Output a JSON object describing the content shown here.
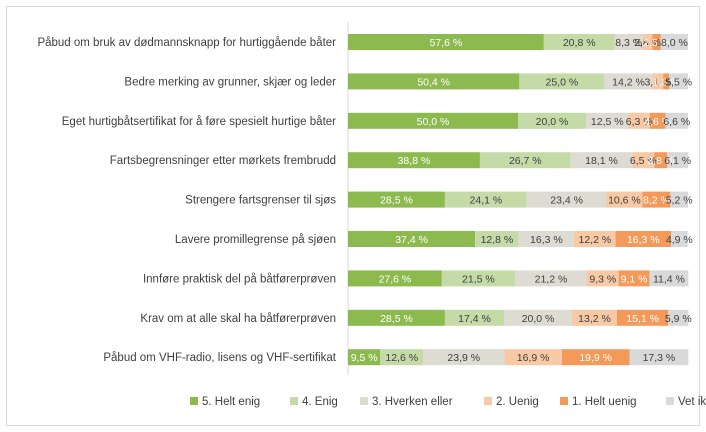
{
  "chart_data": {
    "type": "bar",
    "orientation": "horizontal-stacked-100",
    "categories": [
      "Påbud om bruk av dødmannsknapp for hurtiggående båter",
      "Bedre merking av grunner, skjær og leder",
      "Eget hurtigbåtsertifikat for å føre spesielt hurtige båter",
      "Fartsbegrensninger etter mørkets frembrudd",
      "Strengere fartsgrenser til sjøs",
      "Lavere promillegrense på sjøen",
      "Innføre praktisk del på båtførerprøven",
      "Krav om at alle skal ha båtførerprøven",
      "Påbud om VHF-radio, lisens og VHF-sertifikat"
    ],
    "series": [
      {
        "name": "5. Helt enig",
        "color": "#8dba4f",
        "text_color": "#ffffff",
        "values": [
          57.6,
          50.4,
          50.0,
          38.8,
          28.5,
          37.4,
          27.6,
          28.5,
          9.5
        ],
        "labels": [
          "57,6 %",
          "50,4 %",
          "50,0 %",
          "38,8 %",
          "28,5 %",
          "37,4 %",
          "27,6 %",
          "28,5 %",
          "9,5 %"
        ]
      },
      {
        "name": "4. Enig",
        "color": "#c4dba8",
        "text_color": "#404040",
        "values": [
          20.8,
          25.0,
          20.0,
          26.7,
          24.1,
          12.8,
          21.5,
          17.4,
          12.6
        ],
        "labels": [
          "20,8 %",
          "25,0 %",
          "20,0 %",
          "26,7 %",
          "24,1 %",
          "12,8 %",
          "21,5 %",
          "17,4 %",
          "12,6 %"
        ]
      },
      {
        "name": "3. Hverken eller",
        "color": "#dedbd2",
        "text_color": "#404040",
        "values": [
          8.3,
          14.2,
          12.5,
          18.1,
          23.4,
          16.3,
          21.2,
          20.0,
          23.9
        ],
        "labels": [
          "8,3 %",
          "14,2 %",
          "12,5 %",
          "18,1 %",
          "23,4 %",
          "16,3 %",
          "21,2 %",
          "20,0 %",
          "23,9 %"
        ]
      },
      {
        "name": "2. Uenig",
        "color": "#f7c9a4",
        "text_color": "#404040",
        "values": [
          2.8,
          3.1,
          6.3,
          6.5,
          10.6,
          12.2,
          9.3,
          13.2,
          16.9
        ],
        "labels": [
          "2,8 %",
          "3,1 %",
          "6,3 %",
          "6,5 %",
          "10,6 %",
          "12,2 %",
          "9,3 %",
          "13,2 %",
          "16,9 %"
        ]
      },
      {
        "name": "1. Helt uenig",
        "color": "#f39a5b",
        "text_color": "#ffffff",
        "values": [
          2.5,
          1.8,
          4.6,
          3.8,
          8.2,
          16.3,
          9.1,
          15.1,
          19.9
        ],
        "labels": [
          "2,5 %",
          "1,8 %",
          "4,6 %",
          "3,8 %",
          "8,2 %",
          "16,3 %",
          "9,1 %",
          "15,1 %",
          "19,9 %"
        ]
      },
      {
        "name": "Vet ikke",
        "color": "#d9d9d9",
        "text_color": "#404040",
        "values": [
          8.0,
          5.5,
          6.6,
          6.1,
          5.2,
          4.9,
          11.4,
          5.9,
          17.3
        ],
        "labels": [
          "8,0 %",
          "5,5 %",
          "6,6 %",
          "6,1 %",
          "5,2 %",
          "4,9 %",
          "11,4 %",
          "5,9 %",
          "17,3 %"
        ]
      }
    ],
    "xlim": [
      0,
      100
    ],
    "legend_position": "bottom",
    "grid": false
  }
}
